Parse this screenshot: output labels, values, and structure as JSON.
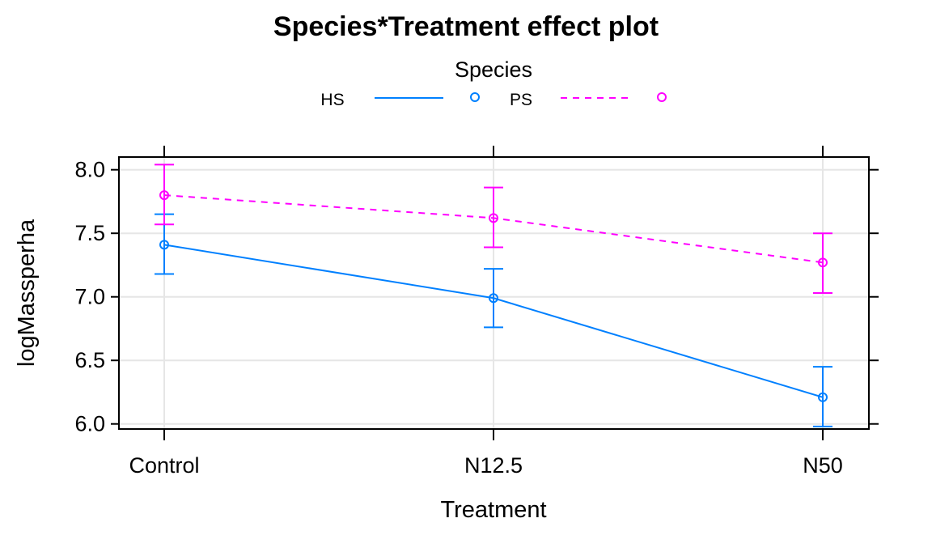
{
  "chart_data": {
    "type": "line",
    "title": "Species*Treatment effect plot",
    "xlabel": "Treatment",
    "ylabel": "logMassperha",
    "categories": [
      "Control",
      "N12.5",
      "N50"
    ],
    "yticks": [
      "6.0",
      "6.5",
      "7.0",
      "7.5",
      "8.0"
    ],
    "ylim": [
      5.96,
      8.1
    ],
    "legend": {
      "title": "Species",
      "placement": "top"
    },
    "series": [
      {
        "name": "HS",
        "color": "#0080ff",
        "dashed": false,
        "values": [
          7.41,
          6.99,
          6.21
        ],
        "lower": [
          7.18,
          6.76,
          5.98
        ],
        "upper": [
          7.65,
          7.22,
          6.45
        ]
      },
      {
        "name": "PS",
        "color": "#ff00ff",
        "dashed": true,
        "values": [
          7.8,
          7.62,
          7.27
        ],
        "lower": [
          7.57,
          7.39,
          7.03
        ],
        "upper": [
          8.04,
          7.86,
          7.5
        ]
      }
    ]
  }
}
